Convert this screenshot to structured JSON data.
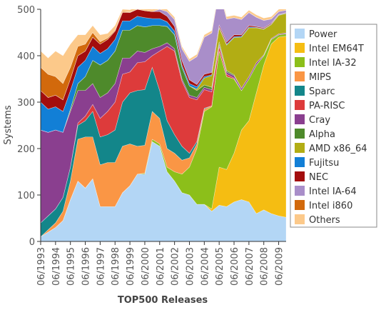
{
  "chart_data": {
    "type": "stacked_area",
    "x_label": "TOP500 Releases",
    "y_label": "Systems",
    "categories": [
      "06/1993",
      null,
      "06/1994",
      null,
      "06/1995",
      null,
      "06/1996",
      null,
      "06/1997",
      null,
      "06/1998",
      null,
      "06/1999",
      null,
      "06/2000",
      null,
      "06/2001",
      null,
      "06/2002",
      null,
      "06/2003",
      null,
      "06/2004",
      null,
      "06/2005",
      null,
      "06/2006",
      null,
      "06/2007",
      null,
      "06/2008",
      null,
      "06/2009",
      null
    ],
    "ylim": [
      0,
      500
    ],
    "yticks": [
      0,
      100,
      200,
      300,
      400,
      500
    ],
    "legend": "right",
    "series": [
      {
        "name": "Power",
        "color": "#b3d6f5",
        "values": [
          10,
          20,
          30,
          45,
          90,
          130,
          115,
          135,
          75,
          75,
          75,
          105,
          120,
          145,
          145,
          215,
          205,
          150,
          130,
          105,
          100,
          80,
          80,
          65,
          78,
          75,
          85,
          90,
          85,
          60,
          68,
          60,
          55,
          52
        ]
      },
      {
        "name": "Intel EM64T",
        "color": "#f5bd12",
        "values": [
          0,
          0,
          0,
          0,
          0,
          0,
          0,
          0,
          0,
          0,
          0,
          0,
          0,
          0,
          0,
          0,
          0,
          0,
          0,
          0,
          0,
          0,
          0,
          5,
          82,
          80,
          105,
          150,
          175,
          260,
          312,
          365,
          385,
          390
        ]
      },
      {
        "name": "Intel IA-32",
        "color": "#8cbf1a",
        "values": [
          0,
          0,
          0,
          0,
          0,
          0,
          0,
          0,
          0,
          0,
          0,
          0,
          0,
          0,
          2,
          5,
          5,
          10,
          20,
          40,
          60,
          120,
          200,
          220,
          250,
          200,
          160,
          85,
          90,
          60,
          20,
          10,
          5,
          5
        ]
      },
      {
        "name": "MIPS",
        "color": "#fa9645",
        "values": [
          0,
          5,
          10,
          20,
          40,
          90,
          110,
          90,
          90,
          95,
          95,
          100,
          90,
          60,
          60,
          60,
          55,
          40,
          40,
          30,
          20,
          10,
          5,
          2,
          0,
          0,
          0,
          0,
          0,
          0,
          0,
          0,
          0,
          0
        ]
      },
      {
        "name": "Sparc",
        "color": "#13868a",
        "values": [
          30,
          30,
          30,
          30,
          30,
          30,
          35,
          55,
          60,
          60,
          70,
          95,
          110,
          120,
          120,
          95,
          60,
          60,
          40,
          30,
          10,
          5,
          2,
          0,
          0,
          0,
          0,
          0,
          0,
          0,
          0,
          0,
          0,
          0
        ]
      },
      {
        "name": "PA-RISC",
        "color": "#dd3b3b",
        "values": [
          0,
          0,
          0,
          0,
          0,
          5,
          10,
          15,
          40,
          50,
          60,
          60,
          45,
          60,
          60,
          25,
          85,
          160,
          180,
          140,
          120,
          90,
          40,
          30,
          10,
          5,
          2,
          0,
          0,
          0,
          0,
          0,
          0,
          0
        ]
      },
      {
        "name": "Cray",
        "color": "#8a3f8f",
        "values": [
          200,
          180,
          170,
          140,
          120,
          70,
          55,
          45,
          45,
          40,
          40,
          35,
          30,
          25,
          20,
          15,
          10,
          8,
          5,
          5,
          5,
          5,
          5,
          5,
          5,
          5,
          5,
          5,
          5,
          5,
          2,
          2,
          2,
          2
        ]
      },
      {
        "name": "Alpha",
        "color": "#4e8a2b",
        "values": [
          0,
          0,
          0,
          0,
          5,
          15,
          30,
          50,
          70,
          70,
          70,
          60,
          60,
          55,
          55,
          50,
          45,
          35,
          30,
          25,
          20,
          15,
          5,
          5,
          5,
          3,
          2,
          0,
          0,
          0,
          0,
          0,
          0,
          0
        ]
      },
      {
        "name": "AMD x86_64",
        "color": "#b2ad14",
        "values": [
          0,
          0,
          0,
          0,
          0,
          0,
          0,
          0,
          0,
          0,
          0,
          0,
          0,
          0,
          0,
          0,
          0,
          0,
          0,
          0,
          0,
          3,
          15,
          25,
          30,
          55,
          80,
          110,
          105,
          75,
          55,
          30,
          40,
          42
        ]
      },
      {
        "name": "Fujitsu",
        "color": "#127fd6",
        "values": [
          60,
          50,
          50,
          45,
          40,
          35,
          35,
          30,
          25,
          25,
          25,
          20,
          20,
          20,
          20,
          15,
          15,
          10,
          8,
          5,
          5,
          5,
          3,
          2,
          2,
          2,
          2,
          2,
          2,
          1,
          1,
          1,
          1,
          1
        ]
      },
      {
        "name": "NEC",
        "color": "#a30d0d",
        "values": [
          25,
          25,
          25,
          25,
          25,
          25,
          20,
          20,
          20,
          20,
          18,
          18,
          18,
          15,
          15,
          15,
          15,
          12,
          10,
          10,
          8,
          5,
          5,
          5,
          4,
          4,
          4,
          3,
          3,
          2,
          2,
          2,
          1,
          1
        ]
      },
      {
        "name": "Intel IA-64",
        "color": "#a98ec9",
        "values": [
          0,
          0,
          0,
          0,
          0,
          0,
          0,
          0,
          0,
          0,
          0,
          0,
          0,
          0,
          0,
          0,
          5,
          10,
          15,
          25,
          40,
          60,
          80,
          85,
          75,
          50,
          37,
          33,
          28,
          20,
          16,
          9,
          6,
          5
        ]
      },
      {
        "name": "Intel i860",
        "color": "#d2690c",
        "values": [
          50,
          50,
          40,
          35,
          25,
          20,
          15,
          10,
          5,
          3,
          2,
          2,
          1,
          0,
          0,
          0,
          0,
          0,
          0,
          0,
          0,
          0,
          0,
          0,
          0,
          0,
          0,
          0,
          0,
          0,
          0,
          0,
          0,
          0
        ]
      },
      {
        "name": "Others",
        "color": "#fcc98a",
        "values": [
          35,
          35,
          55,
          60,
          50,
          25,
          20,
          15,
          15,
          10,
          10,
          5,
          5,
          5,
          5,
          5,
          5,
          5,
          5,
          5,
          5,
          5,
          5,
          5,
          5,
          5,
          5,
          5,
          5,
          5,
          5,
          5,
          5,
          5
        ]
      }
    ]
  }
}
